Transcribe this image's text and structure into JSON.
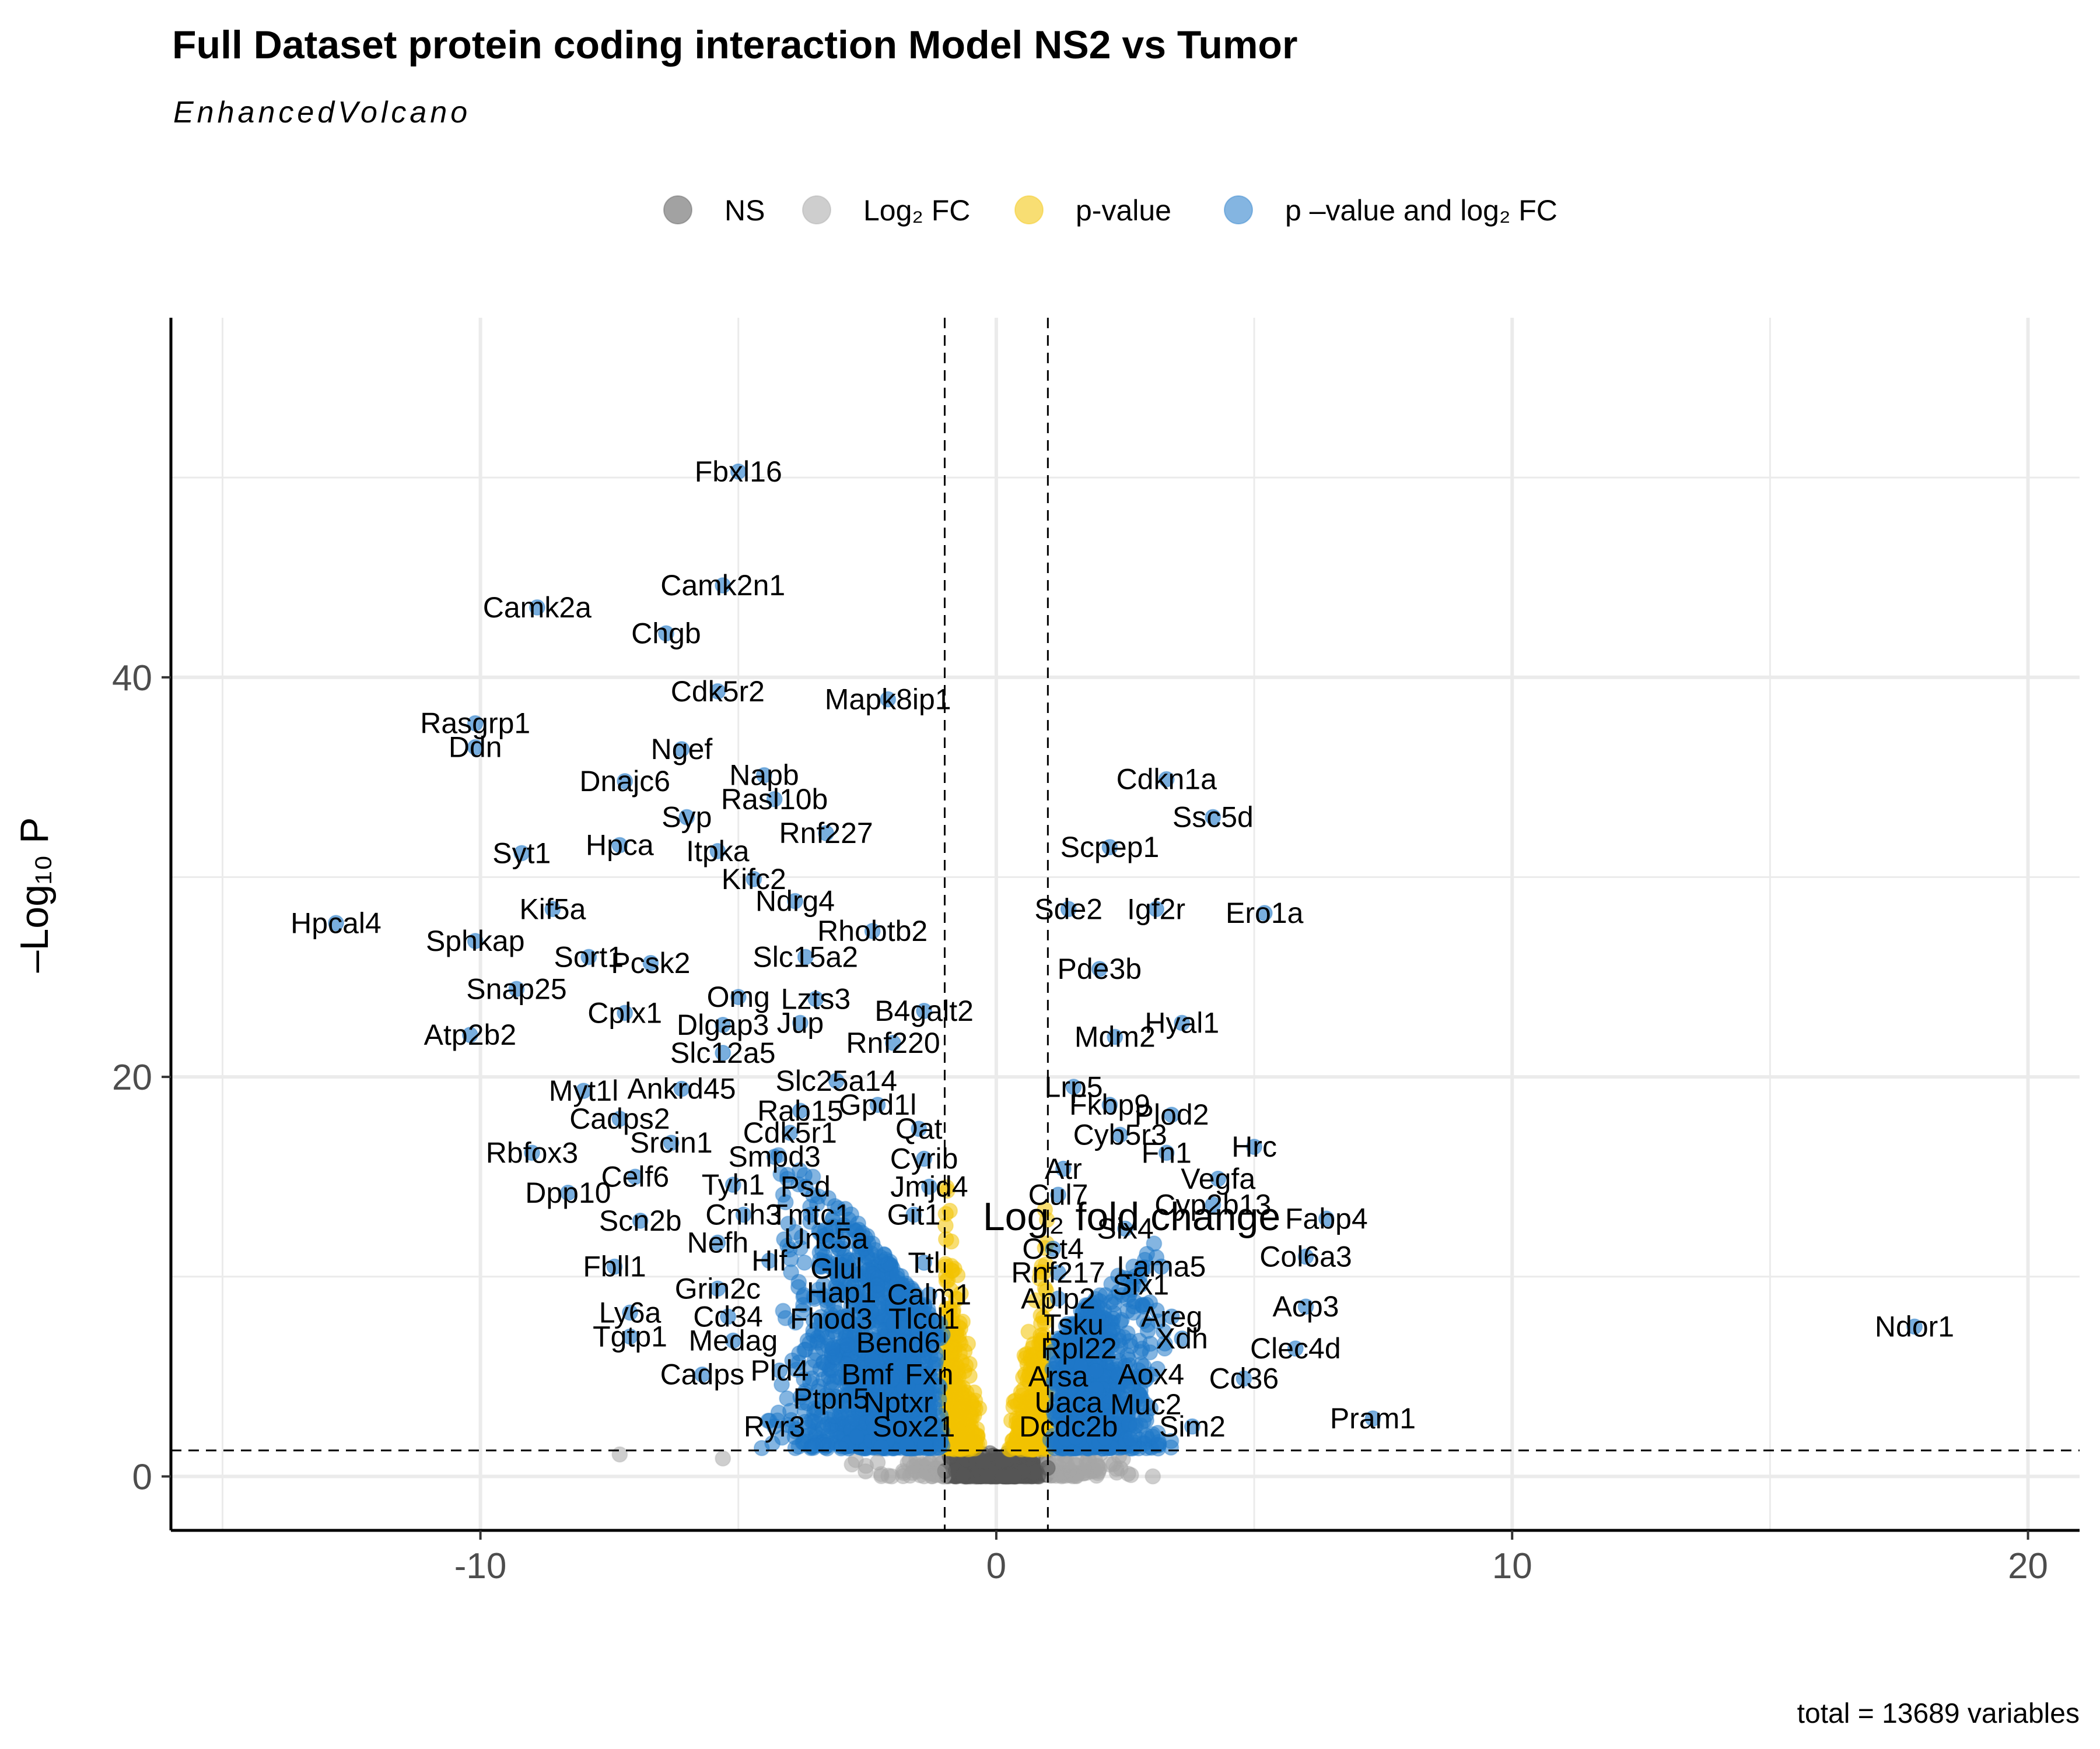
{
  "title": "Full Dataset protein coding interaction Model NS2 vs Tumor",
  "subtitle": "EnhancedVolcano",
  "caption": "total = 13689 variables",
  "legend": {
    "items": [
      {
        "label": "NS",
        "color": "#555555"
      },
      {
        "label": "Log₂ FC",
        "color": "#a6a6a6"
      },
      {
        "label": "p-value",
        "color": "#f2c200"
      },
      {
        "label": "p –value and log₂ FC",
        "color": "#1f78c8"
      }
    ]
  },
  "colors": {
    "ns": "#555555",
    "fc": "#a6a6a6",
    "p": "#f2c200",
    "both": "#1f78c8",
    "grid": "#ebebeb",
    "cutline": "#000000"
  },
  "chart_data": {
    "type": "scatter",
    "xlabel": "Log₂ fold change",
    "ylabel": "–Log₁₀ P",
    "xlim": [
      -16,
      21
    ],
    "ylim": [
      -2.7,
      58
    ],
    "xticks": [
      -10,
      0,
      10,
      20
    ],
    "xtick_labels": [
      "-10",
      "0",
      "10",
      "20"
    ],
    "yticks": [
      0,
      20,
      40
    ],
    "ytick_labels": [
      "0",
      "20",
      "40"
    ],
    "grid": true,
    "legend_position": "top",
    "fc_cutoff": [
      -1,
      1
    ],
    "p_cutoff_log10": 1.3,
    "labeled_genes": [
      {
        "gene": "Fbxl16",
        "x": -5.0,
        "y": 50.3
      },
      {
        "gene": "Camk2n1",
        "x": -5.3,
        "y": 44.6
      },
      {
        "gene": "Camk2a",
        "x": -8.9,
        "y": 43.5
      },
      {
        "gene": "Chgb",
        "x": -6.4,
        "y": 42.2
      },
      {
        "gene": "Cdk5r2",
        "x": -5.4,
        "y": 39.3
      },
      {
        "gene": "Mapk8ip1",
        "x": -2.1,
        "y": 38.9
      },
      {
        "gene": "Rasgrp1",
        "x": -10.1,
        "y": 37.7
      },
      {
        "gene": "Ddn",
        "x": -10.1,
        "y": 36.5
      },
      {
        "gene": "Ngef",
        "x": -6.1,
        "y": 36.4
      },
      {
        "gene": "Napb",
        "x": -4.5,
        "y": 35.1
      },
      {
        "gene": "Dnajc6",
        "x": -7.2,
        "y": 34.8
      },
      {
        "gene": "Rasl10b",
        "x": -4.3,
        "y": 33.9
      },
      {
        "gene": "Cdkn1a",
        "x": 3.3,
        "y": 34.9
      },
      {
        "gene": "Ssc5d",
        "x": 4.2,
        "y": 33.0
      },
      {
        "gene": "Syp",
        "x": -6.0,
        "y": 33.0
      },
      {
        "gene": "Rnf227",
        "x": -3.3,
        "y": 32.2
      },
      {
        "gene": "Hpca",
        "x": -7.3,
        "y": 31.6
      },
      {
        "gene": "Itpka",
        "x": -5.4,
        "y": 31.3
      },
      {
        "gene": "Scpep1",
        "x": 2.2,
        "y": 31.5
      },
      {
        "gene": "Syt1",
        "x": -9.2,
        "y": 31.2
      },
      {
        "gene": "Kifc2",
        "x": -4.7,
        "y": 29.9
      },
      {
        "gene": "Kif5a",
        "x": -8.6,
        "y": 28.4
      },
      {
        "gene": "Ndrg4",
        "x": -3.9,
        "y": 28.8
      },
      {
        "gene": "Sde2",
        "x": 1.4,
        "y": 28.4
      },
      {
        "gene": "Igf2r",
        "x": 3.1,
        "y": 28.4
      },
      {
        "gene": "Ero1a",
        "x": 5.2,
        "y": 28.2
      },
      {
        "gene": "Hpcal4",
        "x": -12.8,
        "y": 27.7
      },
      {
        "gene": "Rhobtb2",
        "x": -2.4,
        "y": 27.3
      },
      {
        "gene": "Sphkap",
        "x": -10.1,
        "y": 26.8
      },
      {
        "gene": "Sort1",
        "x": -7.9,
        "y": 26.0
      },
      {
        "gene": "Pcsk2",
        "x": -6.7,
        "y": 25.7
      },
      {
        "gene": "Slc15a2",
        "x": -3.7,
        "y": 26.0
      },
      {
        "gene": "Pde3b",
        "x": 2.0,
        "y": 25.4
      },
      {
        "gene": "Snap25",
        "x": -9.3,
        "y": 24.4
      },
      {
        "gene": "Omg",
        "x": -5.0,
        "y": 24.0
      },
      {
        "gene": "Lzts3",
        "x": -3.5,
        "y": 23.9
      },
      {
        "gene": "Cplx1",
        "x": -7.2,
        "y": 23.2
      },
      {
        "gene": "B4galt2",
        "x": -1.4,
        "y": 23.3
      },
      {
        "gene": "Dlgap3",
        "x": -5.3,
        "y": 22.6
      },
      {
        "gene": "Jup",
        "x": -3.8,
        "y": 22.7
      },
      {
        "gene": "Hyal1",
        "x": 3.6,
        "y": 22.7
      },
      {
        "gene": "Rnf220",
        "x": -2.0,
        "y": 21.7
      },
      {
        "gene": "Mdm2",
        "x": 2.3,
        "y": 22.0
      },
      {
        "gene": "Atp2b2",
        "x": -10.2,
        "y": 22.1
      },
      {
        "gene": "Slc12a5",
        "x": -5.3,
        "y": 21.2
      },
      {
        "gene": "Slc25a14",
        "x": -3.1,
        "y": 19.8
      },
      {
        "gene": "Lrp5",
        "x": 1.5,
        "y": 19.5
      },
      {
        "gene": "Ankrd45",
        "x": -6.1,
        "y": 19.4
      },
      {
        "gene": "Myt1l",
        "x": -8.0,
        "y": 19.3
      },
      {
        "gene": "Gpd1l",
        "x": -2.3,
        "y": 18.6
      },
      {
        "gene": "Fkbp9",
        "x": 2.2,
        "y": 18.6
      },
      {
        "gene": "Rab15",
        "x": -3.8,
        "y": 18.3
      },
      {
        "gene": "Plod2",
        "x": 3.4,
        "y": 18.1
      },
      {
        "gene": "Cadps2",
        "x": -7.3,
        "y": 17.9
      },
      {
        "gene": "Cdk5r1",
        "x": -4.0,
        "y": 17.2
      },
      {
        "gene": "Qat",
        "x": -1.5,
        "y": 17.4
      },
      {
        "gene": "Cyb5r3",
        "x": 2.4,
        "y": 17.1
      },
      {
        "gene": "Hrc",
        "x": 5.0,
        "y": 16.5
      },
      {
        "gene": "Srcin1",
        "x": -6.3,
        "y": 16.7
      },
      {
        "gene": "Fn1",
        "x": 3.3,
        "y": 16.2
      },
      {
        "gene": "Rbfox3",
        "x": -9.0,
        "y": 16.2
      },
      {
        "gene": "Smpd3",
        "x": -4.3,
        "y": 16.0
      },
      {
        "gene": "Cyrib",
        "x": -1.4,
        "y": 15.9
      },
      {
        "gene": "Atr",
        "x": 1.3,
        "y": 15.4
      },
      {
        "gene": "Celf6",
        "x": -7.0,
        "y": 15.0
      },
      {
        "gene": "Vegfa",
        "x": 4.3,
        "y": 14.9
      },
      {
        "gene": "Tyh1",
        "x": -5.1,
        "y": 14.6
      },
      {
        "gene": "Psd",
        "x": -3.7,
        "y": 14.5
      },
      {
        "gene": "Jmjd4",
        "x": -1.3,
        "y": 14.5
      },
      {
        "gene": "Dpp10",
        "x": -8.3,
        "y": 14.2
      },
      {
        "gene": "Cul7",
        "x": 1.2,
        "y": 14.1
      },
      {
        "gene": "Cyp2b13",
        "x": 4.2,
        "y": 13.6
      },
      {
        "gene": "Cnih3",
        "x": -4.9,
        "y": 13.1
      },
      {
        "gene": "Tmtc1",
        "x": -3.6,
        "y": 13.1
      },
      {
        "gene": "Git1",
        "x": -1.6,
        "y": 13.1
      },
      {
        "gene": "Fabp4",
        "x": 6.4,
        "y": 12.9
      },
      {
        "gene": "Scn2b",
        "x": -6.9,
        "y": 12.8
      },
      {
        "gene": "Six4",
        "x": 2.5,
        "y": 12.4
      },
      {
        "gene": "Unc5a",
        "x": -3.3,
        "y": 11.9
      },
      {
        "gene": "Nefh",
        "x": -5.4,
        "y": 11.7
      },
      {
        "gene": "Ost4",
        "x": 1.1,
        "y": 11.4
      },
      {
        "gene": "Col6a3",
        "x": 6.0,
        "y": 11.0
      },
      {
        "gene": "Lama5",
        "x": 3.2,
        "y": 10.5
      },
      {
        "gene": "Hlf",
        "x": -4.4,
        "y": 10.8
      },
      {
        "gene": "Glul",
        "x": -3.1,
        "y": 10.4
      },
      {
        "gene": "Ttl",
        "x": -1.4,
        "y": 10.7
      },
      {
        "gene": "Rnf217",
        "x": 1.2,
        "y": 10.2
      },
      {
        "gene": "Fbll1",
        "x": -7.4,
        "y": 10.5
      },
      {
        "gene": "Six1",
        "x": 2.8,
        "y": 9.6
      },
      {
        "gene": "Grin2c",
        "x": -5.4,
        "y": 9.4
      },
      {
        "gene": "Hap1",
        "x": -3.0,
        "y": 9.2
      },
      {
        "gene": "Calm1",
        "x": -1.3,
        "y": 9.1
      },
      {
        "gene": "Aplp2",
        "x": 1.2,
        "y": 8.9
      },
      {
        "gene": "Acp3",
        "x": 6.0,
        "y": 8.5
      },
      {
        "gene": "Ly6a",
        "x": -7.1,
        "y": 8.2
      },
      {
        "gene": "Cd34",
        "x": -5.2,
        "y": 8.0
      },
      {
        "gene": "Fhod3",
        "x": -3.2,
        "y": 7.9
      },
      {
        "gene": "Tlcd1",
        "x": -1.4,
        "y": 7.9
      },
      {
        "gene": "Tsku",
        "x": 1.5,
        "y": 7.6
      },
      {
        "gene": "Areg",
        "x": 3.4,
        "y": 8.0
      },
      {
        "gene": "Ndor1",
        "x": 17.8,
        "y": 7.5
      },
      {
        "gene": "Tgtp1",
        "x": -7.1,
        "y": 7.0
      },
      {
        "gene": "Medag",
        "x": -5.1,
        "y": 6.8
      },
      {
        "gene": "Xdh",
        "x": 3.6,
        "y": 6.9
      },
      {
        "gene": "Bend6",
        "x": -1.9,
        "y": 6.7
      },
      {
        "gene": "Rpl22",
        "x": 1.6,
        "y": 6.4
      },
      {
        "gene": "Clec4d",
        "x": 5.8,
        "y": 6.4
      },
      {
        "gene": "Pld4",
        "x": -4.2,
        "y": 5.3
      },
      {
        "gene": "Cadps",
        "x": -5.7,
        "y": 5.1
      },
      {
        "gene": "Bmf",
        "x": -2.5,
        "y": 5.1
      },
      {
        "gene": "Fxn",
        "x": -1.3,
        "y": 5.1
      },
      {
        "gene": "Arsa",
        "x": 1.2,
        "y": 5.0
      },
      {
        "gene": "Aox4",
        "x": 3.0,
        "y": 5.1
      },
      {
        "gene": "Cd36",
        "x": 4.8,
        "y": 4.9
      },
      {
        "gene": "Ptpn5",
        "x": -3.2,
        "y": 3.9
      },
      {
        "gene": "Nptxr",
        "x": -1.9,
        "y": 3.7
      },
      {
        "gene": "Uaca",
        "x": 1.4,
        "y": 3.7
      },
      {
        "gene": "Muc2",
        "x": 2.9,
        "y": 3.6
      },
      {
        "gene": "Pram1",
        "x": 7.3,
        "y": 2.9
      },
      {
        "gene": "Ryr3",
        "x": -4.3,
        "y": 2.5
      },
      {
        "gene": "Sox21",
        "x": -1.6,
        "y": 2.5
      },
      {
        "gene": "Dcdc2b",
        "x": 1.4,
        "y": 2.5
      },
      {
        "gene": "Sim2",
        "x": 3.8,
        "y": 2.5
      }
    ]
  }
}
